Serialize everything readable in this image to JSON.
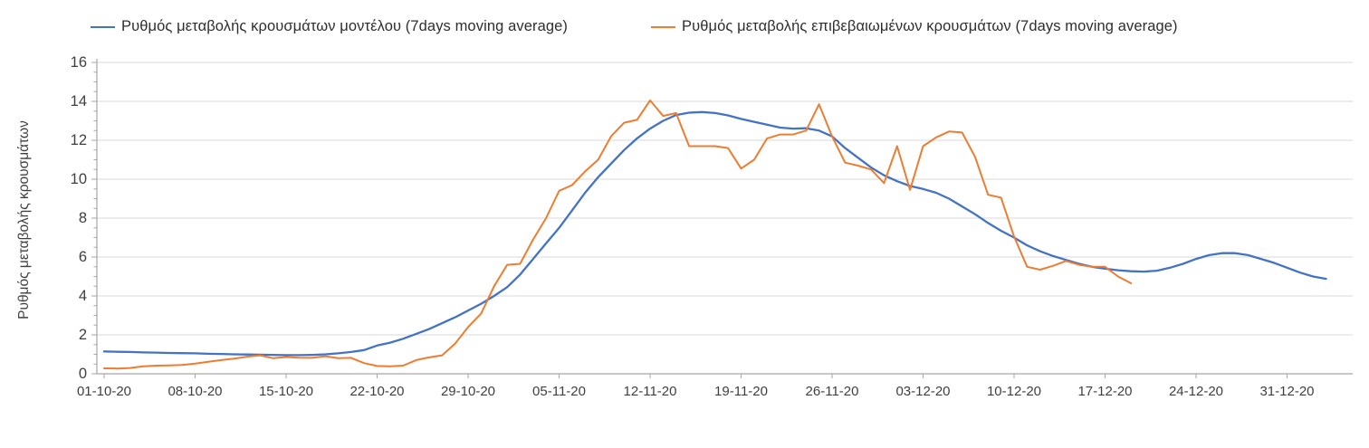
{
  "legend": {
    "items": [
      {
        "label": "Ρυθμός μεταβολής κρουσμάτων μοντέλου (7days moving average)",
        "color": "#4472C4"
      },
      {
        "label": "Ρυθμός μεταβολής επιβεβαιωμένων κρουσμάτων (7days moving average)",
        "color": "#ED7D31"
      }
    ]
  },
  "y_axis": {
    "title": "Ρυθμός μεταβολής κρουσμάτων",
    "tick_labels": [
      "0",
      "2",
      "4",
      "6",
      "8",
      "10",
      "12",
      "14",
      "16"
    ],
    "min": 0,
    "max": 16
  },
  "x_axis": {
    "tick_labels": [
      "01-10-20",
      "08-10-20",
      "15-10-20",
      "22-10-20",
      "29-10-20",
      "05-11-20",
      "12-11-20",
      "19-11-20",
      "26-11-20",
      "03-12-20",
      "10-12-20",
      "17-12-20",
      "24-12-20",
      "31-12-20"
    ],
    "days_between_ticks": 7
  },
  "chart_data": {
    "type": "line",
    "title": "",
    "xlabel": "",
    "ylabel": "Ρυθμός μεταβολής κρουσμάτων",
    "ylim": [
      0,
      16
    ],
    "grid": "horizontal",
    "legend_position": "top",
    "x_unit": "daily values, day 0 = 01-10-20",
    "x_tick_dates": [
      "01-10-20",
      "08-10-20",
      "15-10-20",
      "22-10-20",
      "29-10-20",
      "05-11-20",
      "12-11-20",
      "19-11-20",
      "26-11-20",
      "03-12-20",
      "10-12-20",
      "17-12-20",
      "24-12-20",
      "31-12-20"
    ],
    "series": [
      {
        "name": "Ρυθμός μεταβολής κρουσμάτων μοντέλου (7days moving average)",
        "color": "#4472C4",
        "start_day": 0,
        "values": [
          1.15,
          1.13,
          1.12,
          1.1,
          1.09,
          1.07,
          1.06,
          1.05,
          1.03,
          1.02,
          1.0,
          0.99,
          0.98,
          0.97,
          0.96,
          0.96,
          0.97,
          1.0,
          1.05,
          1.12,
          1.22,
          1.45,
          1.6,
          1.8,
          2.05,
          2.3,
          2.6,
          2.9,
          3.25,
          3.6,
          4.0,
          4.45,
          5.1,
          5.9,
          6.7,
          7.5,
          8.4,
          9.3,
          10.1,
          10.8,
          11.5,
          12.1,
          12.6,
          13.0,
          13.3,
          13.42,
          13.45,
          13.4,
          13.28,
          13.1,
          12.95,
          12.8,
          12.65,
          12.6,
          12.62,
          12.5,
          12.2,
          11.6,
          11.1,
          10.6,
          10.2,
          9.9,
          9.65,
          9.5,
          9.3,
          9.0,
          8.6,
          8.2,
          7.75,
          7.35,
          7.0,
          6.6,
          6.3,
          6.05,
          5.85,
          5.65,
          5.5,
          5.4,
          5.32,
          5.27,
          5.25,
          5.3,
          5.45,
          5.65,
          5.9,
          6.1,
          6.2,
          6.2,
          6.1,
          5.9,
          5.7,
          5.45,
          5.2,
          5.0,
          4.88
        ]
      },
      {
        "name": "Ρυθμός μεταβολής επιβεβαιωμένων κρουσμάτων (7days moving average)",
        "color": "#ED7D31",
        "start_day": 0,
        "values": [
          0.28,
          0.27,
          0.3,
          0.38,
          0.42,
          0.43,
          0.45,
          0.52,
          0.62,
          0.7,
          0.78,
          0.88,
          0.95,
          0.8,
          0.86,
          0.83,
          0.82,
          0.9,
          0.8,
          0.82,
          0.55,
          0.4,
          0.38,
          0.42,
          0.7,
          0.84,
          0.95,
          1.55,
          2.4,
          3.1,
          4.5,
          5.6,
          5.65,
          6.9,
          8.0,
          9.4,
          9.7,
          10.4,
          11.0,
          12.2,
          12.9,
          13.05,
          14.05,
          13.25,
          13.4,
          11.7,
          11.7,
          11.7,
          11.6,
          10.55,
          11.0,
          12.1,
          12.3,
          12.3,
          12.5,
          13.85,
          12.2,
          10.85,
          10.7,
          10.5,
          9.8,
          11.7,
          9.45,
          11.7,
          12.15,
          12.45,
          12.4,
          11.15,
          9.2,
          9.05,
          7.05,
          5.5,
          5.35,
          5.55,
          5.8,
          5.6,
          5.5,
          5.5,
          5.0,
          4.65
        ]
      }
    ]
  }
}
